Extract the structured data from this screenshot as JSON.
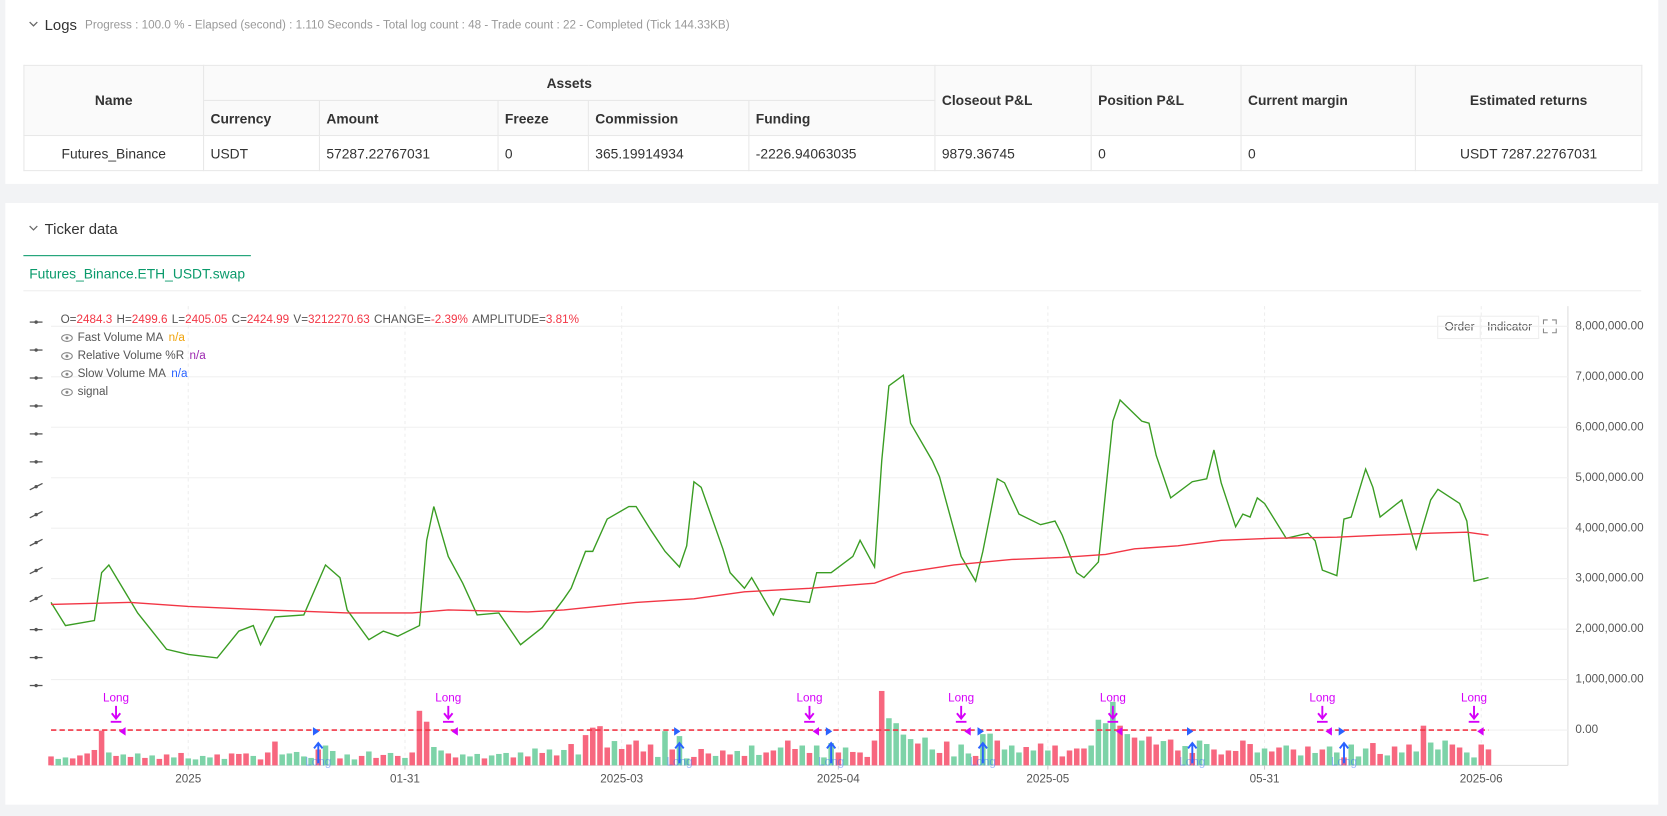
{
  "logs": {
    "title": "Logs",
    "summary": "Progress : 100.0 % - Elapsed (second) : 1.110  Seconds - Total log count : 48 - Trade count : 22 - Completed (Tick 144.33KB)",
    "table": {
      "group": "Assets",
      "head": [
        "Name",
        "Closeout P&L",
        "Position P&L",
        "Current margin",
        "Estimated returns"
      ],
      "subhead": [
        "Currency",
        "Amount",
        "Freeze",
        "Commission",
        "Funding"
      ],
      "rows": [
        [
          "Futures_Binance",
          "USDT",
          "57287.22767031",
          "0",
          "365.19914934",
          "-2226.94063035",
          "9879.36745",
          "0",
          "0",
          "USDT 7287.22767031"
        ]
      ]
    }
  },
  "ticker": {
    "title": "Ticker data",
    "tab": "Futures_Binance.ETH_USDT.swap",
    "buttons": [
      "Order",
      "Indicator"
    ]
  },
  "chart_data": {
    "type": "line",
    "ohlc": [
      {
        "label": "O=",
        "value": "2484.3"
      },
      {
        "label": "H=",
        "value": "2499.6"
      },
      {
        "label": "L=",
        "value": "2405.05"
      },
      {
        "label": "C=",
        "value": "2424.99"
      },
      {
        "label": "V=",
        "value": "3212270.63"
      },
      {
        "label": "CHANGE=",
        "value": "-2.39%"
      },
      {
        "label": "AMPLITUDE=",
        "value": "3.81%"
      }
    ],
    "xlim": [
      0,
      210
    ],
    "xticks": [
      {
        "value": 19,
        "label": "2025"
      },
      {
        "value": 49,
        "label": "01-31"
      },
      {
        "value": 79,
        "label": "2025-03"
      },
      {
        "value": 109,
        "label": "2025-04"
      },
      {
        "value": 138,
        "label": "2025-05"
      },
      {
        "value": 168,
        "label": "05-31"
      },
      {
        "value": 198,
        "label": "2025-06"
      }
    ],
    "ylim": [
      -700000,
      8400000
    ],
    "yticks": [
      {
        "value": 8000000,
        "label": "8,000,000.00"
      },
      {
        "value": 7000000,
        "label": "7,000,000.00"
      },
      {
        "value": 6000000,
        "label": "6,000,000.00"
      },
      {
        "value": 5000000,
        "label": "5,000,000.00"
      },
      {
        "value": 4000000,
        "label": "4,000,000.00"
      },
      {
        "value": 3000000,
        "label": "3,000,000.00"
      },
      {
        "value": 2000000,
        "label": "2,000,000.00"
      },
      {
        "value": 1000000,
        "label": "1,000,000.00"
      },
      {
        "value": 0,
        "label": "0.00"
      }
    ],
    "grid": true,
    "series": [
      {
        "name": "Fast Volume MA",
        "legend_value": "n/a",
        "legend_color": "#f0a30a",
        "color": "#3a9d23",
        "x": [
          0,
          2,
          6,
          7,
          8,
          12,
          16,
          19,
          23,
          26,
          28,
          29,
          31,
          35,
          38,
          40,
          41,
          44,
          46,
          48,
          51,
          52,
          53,
          55,
          57,
          59,
          62,
          65,
          68,
          71,
          72,
          74,
          75,
          77,
          80,
          81,
          83,
          85,
          87,
          88,
          89,
          90,
          93,
          94,
          96,
          97,
          100,
          101,
          105,
          106,
          108,
          111,
          112,
          114,
          115,
          116,
          118,
          119,
          122,
          123,
          124,
          126,
          128,
          129,
          131,
          132,
          134,
          137,
          139,
          140,
          142,
          143,
          145,
          147,
          148,
          151,
          152,
          153,
          155,
          158,
          160,
          161,
          162,
          164,
          165,
          166,
          167,
          168,
          171,
          174,
          175,
          176,
          178,
          179,
          180,
          182,
          183,
          184,
          187,
          189,
          191,
          192,
          195,
          196,
          197,
          199
        ],
        "values": [
          2530000,
          2070000,
          2170000,
          3120000,
          3270000,
          2320000,
          1600000,
          1500000,
          1430000,
          1960000,
          2070000,
          1690000,
          2240000,
          2280000,
          3270000,
          3020000,
          2380000,
          1790000,
          1960000,
          1860000,
          2070000,
          3760000,
          4430000,
          3440000,
          2910000,
          2280000,
          2320000,
          1690000,
          2030000,
          2600000,
          2810000,
          3540000,
          3540000,
          4180000,
          4430000,
          4430000,
          3970000,
          3540000,
          3230000,
          3650000,
          4920000,
          4810000,
          3590000,
          3120000,
          2810000,
          3020000,
          2280000,
          2600000,
          2530000,
          3120000,
          3120000,
          3440000,
          3760000,
          3230000,
          5340000,
          6820000,
          7030000,
          6080000,
          5340000,
          5020000,
          4490000,
          3440000,
          2950000,
          3540000,
          4980000,
          4900000,
          4280000,
          4070000,
          4140000,
          3860000,
          3120000,
          3020000,
          3330000,
          6120000,
          6540000,
          6120000,
          6080000,
          5440000,
          4600000,
          4920000,
          4980000,
          5550000,
          4900000,
          4030000,
          4280000,
          4220000,
          4600000,
          4490000,
          3800000,
          3900000,
          3750000,
          3170000,
          3060000,
          4180000,
          4220000,
          5170000,
          4810000,
          4220000,
          4560000,
          3590000,
          4560000,
          4770000,
          4490000,
          4140000,
          2950000,
          3020000
        ]
      },
      {
        "name": "Relative Volume %R",
        "legend_value": "n/a",
        "legend_color": "#9c27b0"
      },
      {
        "name": "Slow Volume MA",
        "legend_value": "n/a",
        "legend_color": "#2962ff",
        "color": "#f23645",
        "x": [
          0,
          11,
          19,
          30,
          41,
          50,
          55,
          66,
          71,
          81,
          89,
          96,
          105,
          114,
          118,
          125,
          133,
          140,
          146,
          150,
          156,
          162,
          169,
          178,
          184,
          191,
          196,
          199
        ],
        "values": [
          2490000,
          2530000,
          2450000,
          2380000,
          2320000,
          2320000,
          2380000,
          2340000,
          2380000,
          2530000,
          2600000,
          2740000,
          2810000,
          2910000,
          3120000,
          3270000,
          3380000,
          3420000,
          3480000,
          3590000,
          3650000,
          3760000,
          3800000,
          3820000,
          3860000,
          3900000,
          3920000,
          3860000
        ]
      },
      {
        "name": "signal",
        "color": "#f23645",
        "dash": true,
        "x": [
          0,
          199
        ],
        "values": [
          0,
          0
        ]
      }
    ],
    "volume": {
      "up_color": "#7dd3a8",
      "down_color": "#f7677f",
      "values": [
        1800000,
        1300000,
        1600000,
        1400000,
        2000000,
        2400000,
        3100000,
        7000000,
        2600000,
        1900000,
        2200000,
        1700000,
        2400000,
        1500000,
        2000000,
        1300000,
        2200000,
        1600000,
        2500000,
        1400000,
        1200000,
        1900000,
        1600000,
        2200000,
        1300000,
        2400000,
        2300000,
        2400000,
        1900000,
        1200000,
        2600000,
        4800000,
        2200000,
        2400000,
        2700000,
        1800000,
        1500000,
        3200000,
        4000000,
        2900000,
        1400000,
        2200000,
        1200000,
        1900000,
        2800000,
        1500000,
        2100000,
        2500000,
        1900000,
        1500000,
        2600000,
        11000000,
        8800000,
        3700000,
        3000000,
        2400000,
        1600000,
        2200000,
        1800000,
        2300000,
        1400000,
        2000000,
        2300000,
        2500000,
        1600000,
        2600000,
        1800000,
        3400000,
        2500000,
        3200000,
        2000000,
        3100000,
        4300000,
        2200000,
        6100000,
        7600000,
        7900000,
        3600000,
        4900000,
        3300000,
        4200000,
        5000000,
        2800000,
        4200000,
        1700000,
        6900000,
        3200000,
        5900000,
        1400000,
        1700000,
        3300000,
        2400000,
        1900000,
        3000000,
        2200000,
        2900000,
        1900000,
        4000000,
        2100000,
        2600000,
        3000000,
        3600000,
        5000000,
        3300000,
        4000000,
        2500000,
        4000000,
        1600000,
        4500000,
        2600000,
        3600000,
        2700000,
        2600000,
        1700000,
        5000000,
        15000000,
        9500000,
        8500000,
        6200000,
        5300000,
        4400000,
        5600000,
        3200000,
        2500000,
        4800000,
        1800000,
        4200000,
        2400000,
        1900000,
        6300000,
        6400000,
        5000000,
        3200000,
        4000000,
        2600000,
        3700000,
        3000000,
        4400000,
        3000000,
        4000000,
        1800000,
        3000000,
        3400000,
        3400000,
        4000000,
        9200000,
        8500000,
        12800000,
        8000000,
        6300000,
        5600000,
        5000000,
        5800000,
        4200000,
        4900000,
        5200000,
        3000000,
        3900000,
        2500000,
        5000000,
        4300000,
        3200000,
        2200000,
        3000000,
        2900000,
        5000000,
        4300000,
        2600000,
        3400000,
        2800000,
        3600000,
        4000000,
        3200000,
        2000000,
        3800000,
        2500000,
        3200000,
        3800000,
        2600000,
        1600000,
        4200000,
        1800000,
        3400000,
        4500000,
        2300000,
        2000000,
        3800000,
        2600000,
        4200000,
        2800000,
        8000000,
        4600000,
        3200000,
        5000000,
        4200000,
        3600000,
        2600000,
        1600000,
        4200000,
        3212270.63
      ],
      "rising": [
        0,
        1,
        1,
        0,
        0,
        0,
        0,
        0,
        1,
        0,
        1,
        0,
        1,
        0,
        1,
        0,
        0,
        1,
        0,
        1,
        1,
        1,
        1,
        0,
        1,
        0,
        0,
        0,
        1,
        0,
        0,
        0,
        1,
        1,
        1,
        1,
        1,
        0,
        1,
        1,
        0,
        1,
        1,
        0,
        1,
        0,
        0,
        1,
        0,
        1,
        0,
        0,
        0,
        1,
        1,
        0,
        0,
        1,
        1,
        1,
        0,
        1,
        1,
        1,
        0,
        1,
        0,
        1,
        0,
        1,
        0,
        1,
        0,
        1,
        0,
        0,
        0,
        0,
        1,
        0,
        0,
        0,
        0,
        0,
        1,
        1,
        0,
        1,
        1,
        0,
        0,
        0,
        1,
        0,
        0,
        1,
        0,
        1,
        1,
        0,
        0,
        1,
        0,
        0,
        1,
        0,
        1,
        1,
        1,
        0,
        1,
        0,
        0,
        0,
        0,
        0,
        1,
        1,
        1,
        1,
        0,
        1,
        1,
        0,
        0,
        1,
        1,
        1,
        0,
        1,
        1,
        0,
        1,
        1,
        1,
        0,
        1,
        0,
        1,
        0,
        0,
        0,
        0,
        0,
        1,
        1,
        1,
        1,
        0,
        1,
        0,
        1,
        0,
        0,
        1,
        0,
        0,
        1,
        0,
        1,
        1,
        0,
        0,
        0,
        0,
        0,
        0,
        1,
        1,
        0,
        0,
        1,
        0,
        1,
        0,
        1,
        0,
        1,
        1,
        0,
        1,
        1,
        1,
        0,
        0,
        1,
        0,
        1,
        0,
        1,
        0,
        1,
        1,
        1,
        0,
        0,
        1,
        1,
        0,
        0
      ]
    },
    "signals": [
      {
        "x": 9,
        "label": "Long",
        "color": "#d500f9",
        "dir": "down"
      },
      {
        "x": 55,
        "label": "Long",
        "color": "#d500f9",
        "dir": "down"
      },
      {
        "x": 105,
        "label": "Long",
        "color": "#d500f9",
        "dir": "down"
      },
      {
        "x": 126,
        "label": "Long",
        "color": "#d500f9",
        "dir": "down"
      },
      {
        "x": 147,
        "label": "Long",
        "color": "#d500f9",
        "dir": "down"
      },
      {
        "x": 176,
        "label": "Long",
        "color": "#d500f9",
        "dir": "down"
      },
      {
        "x": 197,
        "label": "Long",
        "color": "#d500f9",
        "dir": "down"
      },
      {
        "x": 37,
        "label": "Long",
        "color": "#2962ff",
        "dir": "up"
      },
      {
        "x": 87,
        "label": "Long",
        "color": "#2962ff",
        "dir": "up"
      },
      {
        "x": 108,
        "label": "Long",
        "color": "#2962ff",
        "dir": "up"
      },
      {
        "x": 129,
        "label": "Long",
        "color": "#2962ff",
        "dir": "up"
      },
      {
        "x": 158,
        "label": "Long",
        "color": "#2962ff",
        "dir": "up"
      },
      {
        "x": 179,
        "label": "Long",
        "color": "#2962ff",
        "dir": "up"
      }
    ]
  }
}
